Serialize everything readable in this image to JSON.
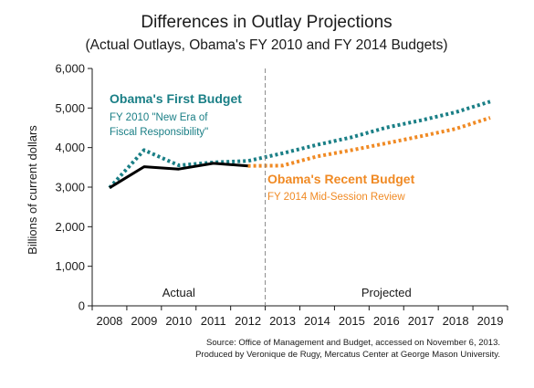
{
  "chart_data": {
    "type": "line",
    "title": "Differences in Outlay Projections",
    "subtitle": "(Actual Outlays, Obama's FY 2010 and FY 2014 Budgets)",
    "ylabel": "Billions of current dollars",
    "xlabel": "",
    "categories": [
      "2008",
      "2009",
      "2010",
      "2011",
      "2012",
      "2013",
      "2014",
      "2015",
      "2016",
      "2017",
      "2018",
      "2019"
    ],
    "y_ticks": [
      "0",
      "1,000",
      "2,000",
      "3,000",
      "4,000",
      "5,000",
      "6,000"
    ],
    "ylim": [
      0,
      6000
    ],
    "grid": false,
    "region_labels": {
      "left": "Actual",
      "right": "Projected"
    },
    "series": [
      {
        "name": "Obama's First Budget",
        "detail": "FY 2010 \"New Era of Fiscal Responsibility\"",
        "detail_lines": [
          "FY 2010 \"New Era of",
          "Fiscal Responsibility\""
        ],
        "color": "#1a7f86",
        "style": "dotted",
        "x": [
          "2008",
          "2009",
          "2010",
          "2011",
          "2012",
          "2013",
          "2014",
          "2015",
          "2016",
          "2017",
          "2018",
          "2019"
        ],
        "values": [
          2983,
          3938,
          3552,
          3625,
          3662,
          3856,
          4070,
          4263,
          4508,
          4689,
          4895,
          5162
        ]
      },
      {
        "name": "Obama's Recent Budget",
        "detail": "FY 2014 Mid-Session Review",
        "color": "#f08a24",
        "style": "dotted",
        "x": [
          "2012",
          "2013",
          "2014",
          "2015",
          "2016",
          "2017",
          "2018",
          "2019"
        ],
        "values": [
          3537,
          3545,
          3778,
          3937,
          4111,
          4287,
          4475,
          4753
        ]
      },
      {
        "name": "Actual Outlays",
        "color": "#000000",
        "style": "solid",
        "x": [
          "2008",
          "2009",
          "2010",
          "2011",
          "2012"
        ],
        "values": [
          2983,
          3518,
          3457,
          3603,
          3537
        ]
      }
    ]
  },
  "source_lines": [
    "Source: Office of Management and Budget, accessed on November 6, 2013.",
    "Produced by Veronique de Rugy, Mercatus Center at George Mason University."
  ]
}
